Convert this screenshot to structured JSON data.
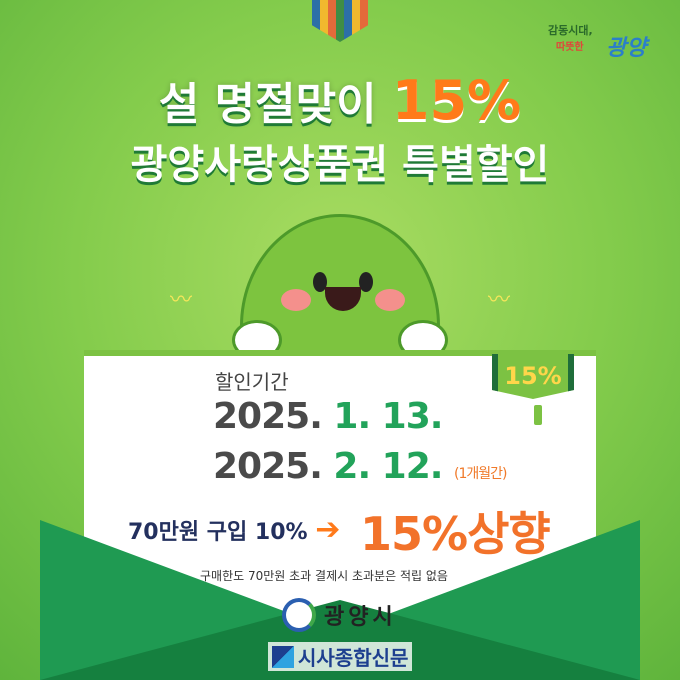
{
  "header": {
    "slogan_line1": "감동시대,",
    "slogan_line2": "따뜻한",
    "slogan_city": "광양",
    "title_prefix": "설 명절맞이",
    "title_percent": "15%",
    "title_line2": "광양사랑상품권 특별할인"
  },
  "card": {
    "badge": "15%",
    "period_label": "할인기간",
    "start_year": "2025.",
    "start_date": "1. 13.",
    "end_year": "2025.",
    "end_date": "2. 12.",
    "duration": "(1개월간)",
    "offer_before": "70만원 구입 10%",
    "arrow": "➔",
    "offer_after": "15%상향",
    "note": "구매한도 70만원 초과 결제시 초과분은 적립 없음"
  },
  "footer": {
    "city_name": "광양시",
    "watermark": "시사종합신문"
  },
  "colors": {
    "background": "#84cc4c",
    "accent_orange": "#f2722a",
    "green": "#22a35a",
    "navy": "#23305e"
  }
}
